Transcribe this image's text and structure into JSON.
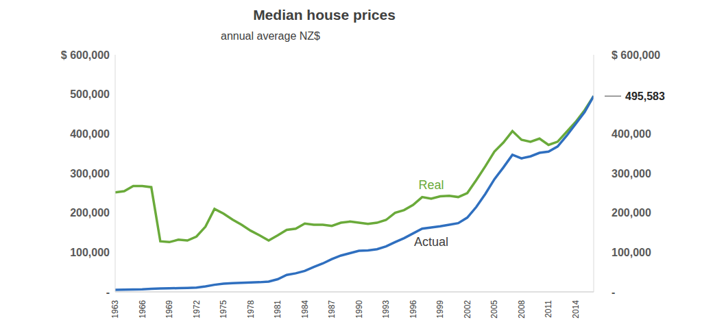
{
  "chart_data": {
    "type": "line",
    "title": "Median house prices",
    "subtitle": "annual average NZ$",
    "x": [
      1963,
      1964,
      1965,
      1966,
      1967,
      1968,
      1969,
      1970,
      1971,
      1972,
      1973,
      1974,
      1975,
      1976,
      1977,
      1978,
      1979,
      1980,
      1981,
      1982,
      1983,
      1984,
      1985,
      1986,
      1987,
      1988,
      1989,
      1990,
      1991,
      1992,
      1993,
      1994,
      1995,
      1996,
      1997,
      1998,
      1999,
      2000,
      2001,
      2002,
      2003,
      2004,
      2005,
      2006,
      2007,
      2008,
      2009,
      2010,
      2011,
      2012,
      2013,
      2014,
      2015,
      2016
    ],
    "series": [
      {
        "name": "Real",
        "color": "#6aaa3a",
        "values": [
          252000,
          255000,
          268000,
          268000,
          265000,
          128000,
          126000,
          132000,
          130000,
          140000,
          165000,
          210000,
          198000,
          183000,
          170000,
          155000,
          143000,
          130000,
          143000,
          157000,
          160000,
          173000,
          170000,
          170000,
          167000,
          175000,
          178000,
          175000,
          172000,
          175000,
          182000,
          200000,
          207000,
          220000,
          240000,
          236000,
          242000,
          243000,
          240000,
          250000,
          283000,
          318000,
          355000,
          378000,
          407000,
          385000,
          380000,
          388000,
          372000,
          380000,
          405000,
          430000,
          460000,
          495583
        ]
      },
      {
        "name": "Actual",
        "color": "#2f6fbf",
        "values": [
          5000,
          5500,
          6000,
          6500,
          8000,
          8500,
          9000,
          9500,
          10000,
          11000,
          14000,
          18000,
          21000,
          22000,
          23000,
          24000,
          24500,
          26000,
          32000,
          43000,
          47000,
          53000,
          63000,
          72000,
          83000,
          92000,
          98000,
          104000,
          105000,
          108000,
          115000,
          126000,
          136000,
          148000,
          160000,
          163000,
          166000,
          170000,
          174000,
          188000,
          215000,
          248000,
          285000,
          315000,
          347000,
          338000,
          343000,
          352000,
          355000,
          368000,
          395000,
          425000,
          455000,
          495583
        ]
      }
    ],
    "xlim": [
      1963,
      2016
    ],
    "xticks": [
      1963,
      1966,
      1969,
      1972,
      1975,
      1978,
      1981,
      1984,
      1987,
      1990,
      1993,
      1996,
      1999,
      2002,
      2005,
      2008,
      2011,
      2014
    ],
    "ylim": [
      0,
      600000
    ],
    "yticks": [
      {
        "value": 0,
        "label": "-"
      },
      {
        "value": 100000,
        "label": "100,000"
      },
      {
        "value": 200000,
        "label": "200,000"
      },
      {
        "value": 300000,
        "label": "300,000"
      },
      {
        "value": 400000,
        "label": "400,000"
      },
      {
        "value": 500000,
        "label": "500,000"
      },
      {
        "value": 600000,
        "label": "$ 600,000"
      }
    ],
    "y2lim": [
      0,
      600000
    ],
    "y2ticks": [
      {
        "value": 0,
        "label": "-"
      },
      {
        "value": 100000,
        "label": "100,000"
      },
      {
        "value": 200000,
        "label": "200,000"
      },
      {
        "value": 300000,
        "label": "300,000"
      },
      {
        "value": 400000,
        "label": "400,000"
      },
      {
        "value": 600000,
        "label": "$ 600,000"
      }
    ],
    "annotations": [
      {
        "text": "495,583",
        "x": 2016,
        "y": 495583
      }
    ],
    "grid": false,
    "legend": false
  }
}
